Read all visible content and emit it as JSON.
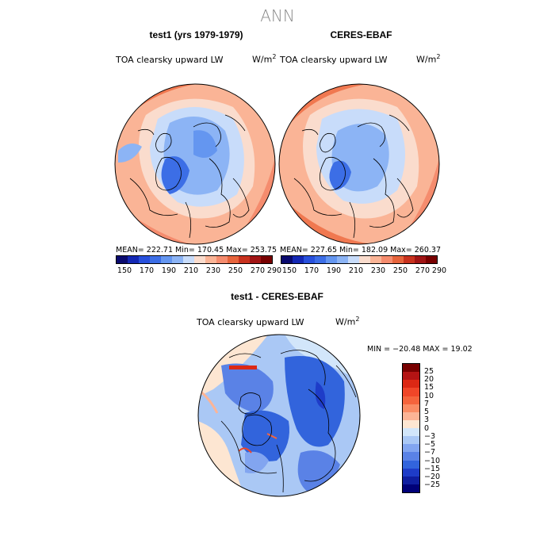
{
  "main_title": "ANN",
  "panels": [
    {
      "title": "test1 (yrs 1979-1979)",
      "variable": "TOA clearsky upward LW",
      "units": "W/m",
      "units_sup": "2",
      "stats": "MEAN= 222.71   Min= 170.45   Max= 253.75"
    },
    {
      "title": "CERES-EBAF",
      "variable": "TOA clearsky upward LW",
      "units": "W/m",
      "units_sup": "2",
      "stats": "MEAN= 227.65   Min= 182.09   Max= 260.37"
    },
    {
      "title": "test1 - CERES-EBAF",
      "variable": "TOA clearsky upward LW",
      "units": "W/m",
      "units_sup": "2",
      "stats": "MIN = −20.48  MAX =  19.02"
    }
  ],
  "chart_data": [
    {
      "type": "heatmap",
      "title": "test1 (yrs 1979-1979)",
      "projection": "north-polar-stereographic",
      "variable": "TOA clearsky upward LW",
      "units": "W/m^2",
      "mean": 222.71,
      "min": 170.45,
      "max": 253.75,
      "colorbar_ticks": [
        "150",
        "170",
        "190",
        "210",
        "230",
        "250",
        "270",
        "290"
      ],
      "colorbar_colors": [
        "#0a0a6e",
        "#1428b4",
        "#2850dc",
        "#3c6ee6",
        "#6496f0",
        "#8cb4f5",
        "#c8dcfa",
        "#fadccd",
        "#fab496",
        "#f58c6e",
        "#e6643c",
        "#c8321e",
        "#a01414",
        "#780000"
      ]
    },
    {
      "type": "heatmap",
      "title": "CERES-EBAF",
      "projection": "north-polar-stereographic",
      "variable": "TOA clearsky upward LW",
      "units": "W/m^2",
      "mean": 227.65,
      "min": 182.09,
      "max": 260.37,
      "colorbar_ticks": [
        "150",
        "170",
        "190",
        "210",
        "230",
        "250",
        "270",
        "290"
      ]
    },
    {
      "type": "heatmap",
      "title": "test1 - CERES-EBAF",
      "projection": "north-polar-stereographic",
      "variable": "TOA clearsky upward LW",
      "units": "W/m^2",
      "min": -20.48,
      "max": 19.02,
      "colorbar_ticks": [
        "25",
        "20",
        "15",
        "10",
        "7",
        "5",
        "3",
        "0",
        "−3",
        "−5",
        "−7",
        "−10",
        "−15",
        "−20",
        "−25"
      ],
      "colorbar_colors": [
        "#780000",
        "#b41414",
        "#dc2814",
        "#f04628",
        "#f5643c",
        "#fa8c64",
        "#fcb496",
        "#fde6d2",
        "#d2e6fa",
        "#aac8f5",
        "#82a5f0",
        "#5a82e6",
        "#3264dc",
        "#1e3cc8",
        "#0f1ea0",
        "#000078"
      ]
    }
  ],
  "colors": {
    "title_gray": "#8a8a8a",
    "coast": "#000000"
  }
}
